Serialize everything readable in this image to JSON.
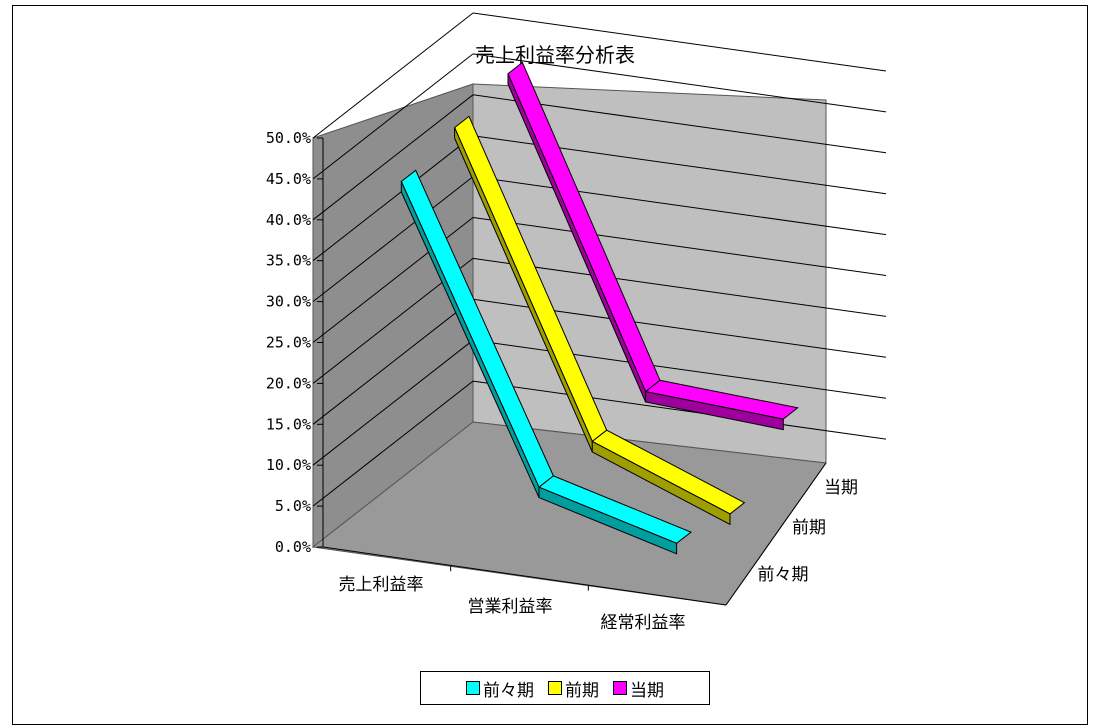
{
  "chart_data": {
    "type": "line",
    "title": "売上利益率分析表",
    "categories": [
      "売上利益率",
      "営業利益率",
      "経常利益率"
    ],
    "depth_categories": [
      "前々期",
      "前期",
      "当期"
    ],
    "series": [
      {
        "name": "前々期",
        "values": [
          44.0,
          9.0,
          4.5
        ],
        "color": "#00ffff"
      },
      {
        "name": "前期",
        "values": [
          45.5,
          9.5,
          3.0
        ],
        "color": "#ffff00"
      },
      {
        "name": "当期",
        "values": [
          47.0,
          10.5,
          9.5
        ],
        "color": "#ff00ff"
      }
    ],
    "yaxis": {
      "ylim": [
        0,
        50
      ],
      "ticks": [
        "0.0%",
        "5.0%",
        "10.0%",
        "15.0%",
        "20.0%",
        "25.0%",
        "30.0%",
        "35.0%",
        "40.0%",
        "45.0%",
        "50.0%"
      ]
    },
    "grid": true,
    "legend_position": "bottom"
  }
}
